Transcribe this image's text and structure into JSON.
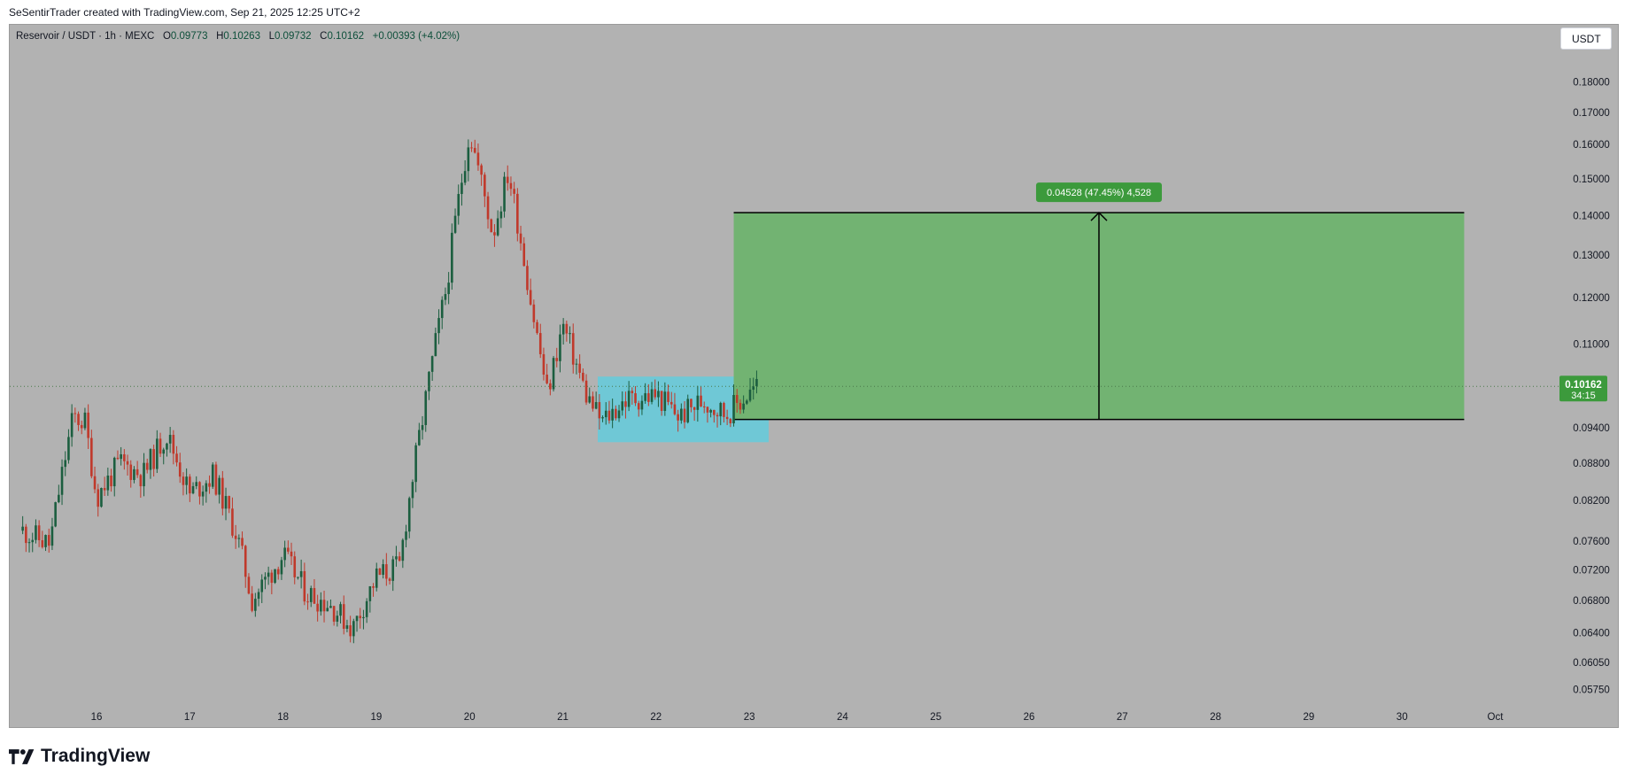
{
  "header": {
    "credit": "SeSentirTrader created with TradingView.com, Sep 21, 2025 12:25 UTC+2"
  },
  "legend": {
    "symbol": "Reservoir / USDT · 1h · MEXC",
    "open_label": "O",
    "open": "0.09773",
    "high_label": "H",
    "high": "0.10263",
    "low_label": "L",
    "low": "0.09732",
    "close_label": "C",
    "close": "0.10162",
    "change": "+0.00393 (+4.02%)"
  },
  "toolbar": {
    "currency": "USDT"
  },
  "footer": {
    "brand": "TradingView",
    "brand_icon": "tradingview-logo-icon"
  },
  "colors": {
    "background": "#b2b2b2",
    "up": "#1b5e3f",
    "down": "#c0392b",
    "target_box": "#72b372",
    "range_box": "#6fc8d6",
    "price_badge": "#3c9a3c"
  },
  "chart_data": {
    "type": "candlestick",
    "title": "",
    "xlabel": "",
    "ylabel": "",
    "timeframe": "1h",
    "y_scale": "log",
    "ylim": [
      0.0555,
      0.1925
    ],
    "grid": false,
    "x_ticks": [
      "16",
      "17",
      "18",
      "19",
      "20",
      "21",
      "22",
      "23",
      "24",
      "25",
      "26",
      "27",
      "28",
      "29",
      "30",
      "Oct"
    ],
    "y_ticks": [
      "0.18000",
      "0.17000",
      "0.16000",
      "0.15000",
      "0.14000",
      "0.13000",
      "0.12000",
      "0.11000",
      "0.09400",
      "0.08800",
      "0.08200",
      "0.07600",
      "0.07200",
      "0.06800",
      "0.06400",
      "0.06050",
      "0.05750"
    ],
    "last_price": {
      "value": "0.10162",
      "countdown": "34:15"
    },
    "price_path": [
      [
        "Sep 15 05:00",
        0.0775
      ],
      [
        "Sep 15 12:00",
        0.0755
      ],
      [
        "Sep 15 18:00",
        0.096
      ],
      [
        "Sep 15 21:00",
        0.095
      ],
      [
        "Sep 16 00:00",
        0.0825
      ],
      [
        "Sep 16 06:00",
        0.088
      ],
      [
        "Sep 16 12:00",
        0.086
      ],
      [
        "Sep 16 18:00",
        0.093
      ],
      [
        "Sep 17 00:00",
        0.083
      ],
      [
        "Sep 17 06:00",
        0.086
      ],
      [
        "Sep 17 12:00",
        0.077
      ],
      [
        "Sep 17 16:00",
        0.068
      ],
      [
        "Sep 18 00:00",
        0.074
      ],
      [
        "Sep 18 06:00",
        0.069
      ],
      [
        "Sep 18 12:00",
        0.0675
      ],
      [
        "Sep 18 18:00",
        0.0645
      ],
      [
        "Sep 19 00:00",
        0.071
      ],
      [
        "Sep 19 06:00",
        0.0725
      ],
      [
        "Sep 19 12:00",
        0.096
      ],
      [
        "Sep 19 18:00",
        0.122
      ],
      [
        "Sep 20 00:00",
        0.164
      ],
      [
        "Sep 20 06:00",
        0.135
      ],
      [
        "Sep 20 10:00",
        0.152
      ],
      [
        "Sep 20 16:00",
        0.118
      ],
      [
        "Sep 20 20:00",
        0.1
      ],
      [
        "Sep 21 00:00",
        0.114
      ],
      [
        "Sep 21 06:00",
        0.1
      ],
      [
        "Sep 21 10:00",
        0.095
      ],
      [
        "Sep 21 16:00",
        0.099
      ],
      [
        "Sep 22 00:00",
        0.1
      ],
      [
        "Sep 22 06:00",
        0.096
      ],
      [
        "Sep 22 12:00",
        0.099
      ],
      [
        "Sep 22 18:00",
        0.0965
      ],
      [
        "Sep 22 22:00",
        0.099
      ],
      [
        "Sep 23 02:00",
        0.1016
      ]
    ],
    "annotations": {
      "range_box": {
        "x_start": "Sep 21 09:00",
        "x_end": "Sep 23 05:00",
        "y_low": 0.0915,
        "y_high": 0.1035
      },
      "price_range": {
        "x_start": "Sep 22 20:00",
        "x_end": "Sep 30 16:00",
        "y_low": 0.0955,
        "y_high": 0.1408,
        "label": "0.04528 (47.45%) 4,528"
      }
    }
  }
}
